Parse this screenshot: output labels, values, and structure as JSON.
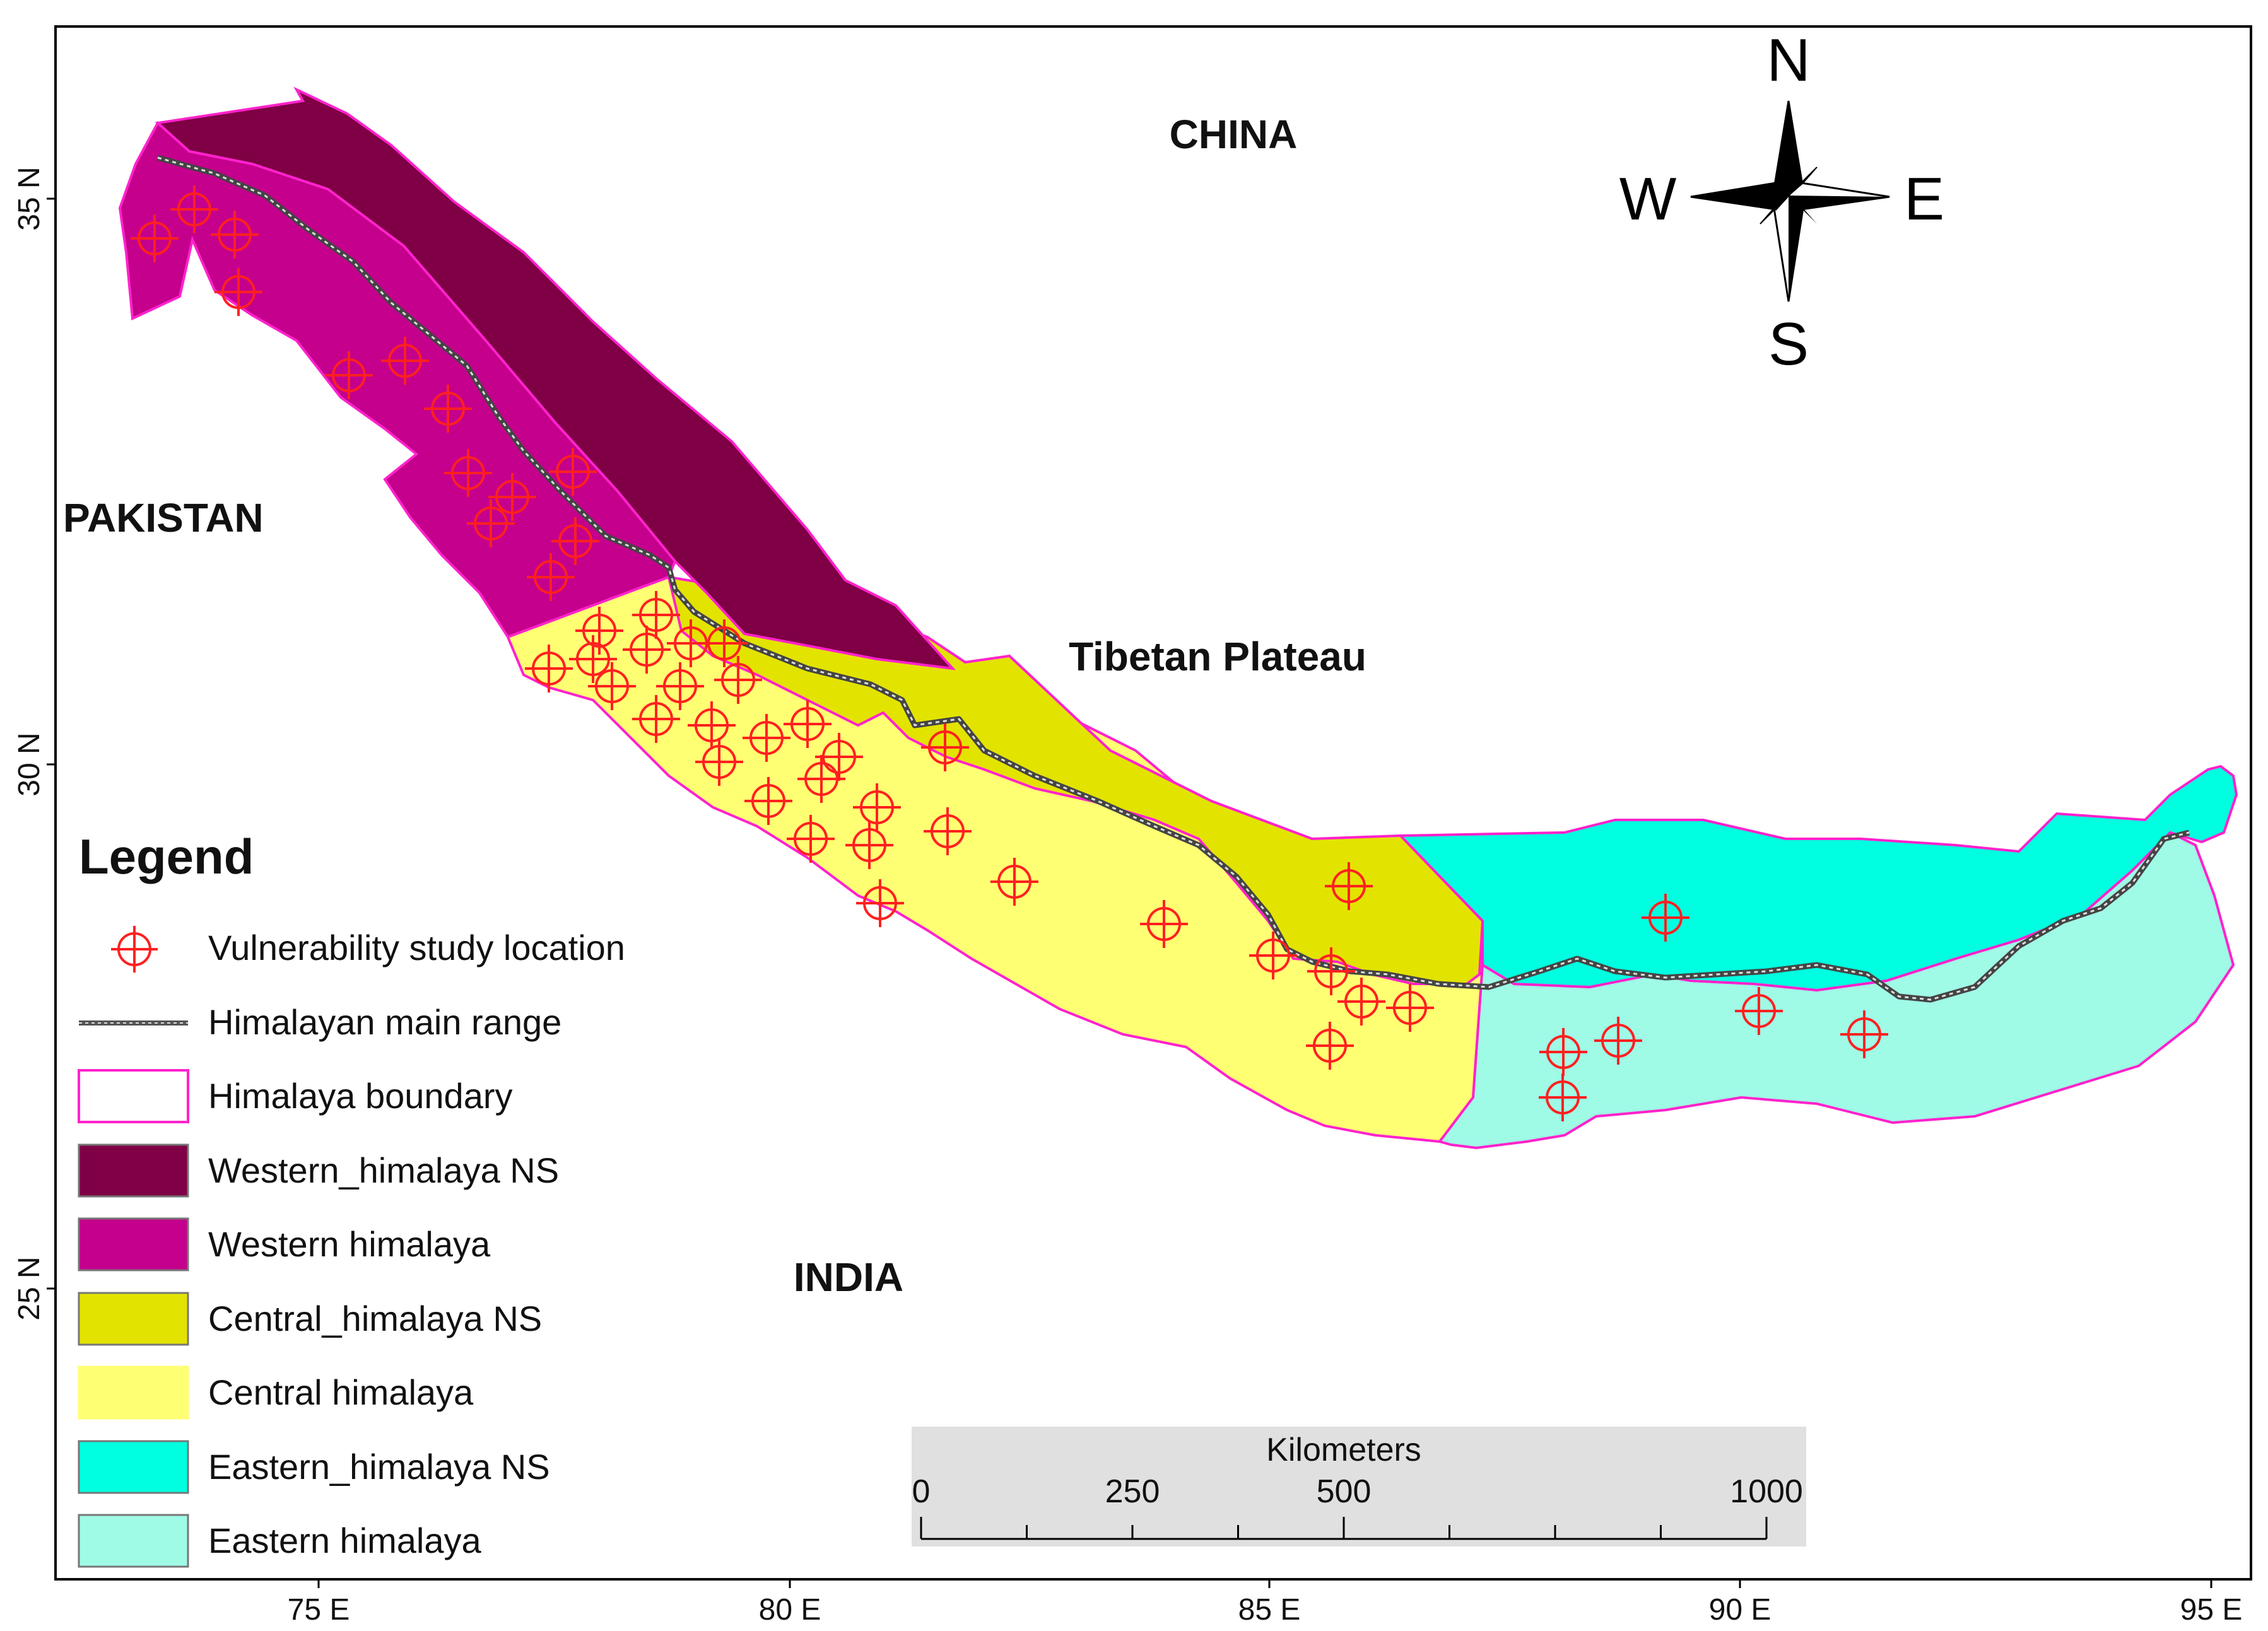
{
  "map": {
    "labels": {
      "china": "CHINA",
      "pakistan": "PAKISTAN",
      "tibet": "Tibetan Plateau",
      "india": "INDIA"
    },
    "lon_ticks": [
      "75 E",
      "80 E",
      "85 E",
      "90 E",
      "95 E"
    ],
    "lat_ticks": [
      "35 N",
      "30 N",
      "25 N"
    ],
    "compass": {
      "n": "N",
      "s": "S",
      "e": "E",
      "w": "W"
    },
    "scale_bar": {
      "title": "Kilometers",
      "labels": [
        "0",
        "250",
        "500",
        "1000"
      ]
    },
    "legend": {
      "title": "Legend",
      "items": [
        {
          "label": "Vulnerability study location",
          "symbol": "target",
          "color": "#ff2020"
        },
        {
          "label": "Himalayan main range",
          "symbol": "range-line",
          "color": "#555555"
        },
        {
          "label": "Himalaya boundary",
          "symbol": "outline",
          "color": "#ff22cc"
        },
        {
          "label": "Western_himalaya NS",
          "symbol": "fill",
          "color": "#7f0045"
        },
        {
          "label": "Western himalaya",
          "symbol": "fill",
          "color": "#c4008c"
        },
        {
          "label": "Central_himalaya NS",
          "symbol": "fill",
          "color": "#e3e300"
        },
        {
          "label": "Central himalaya",
          "symbol": "fill",
          "color": "#ffff73"
        },
        {
          "label": "Eastern_himalaya NS",
          "symbol": "fill",
          "color": "#00ffe0"
        },
        {
          "label": "Eastern himalaya",
          "symbol": "fill",
          "color": "#9ffae6"
        }
      ]
    },
    "study_location_count": 53
  }
}
